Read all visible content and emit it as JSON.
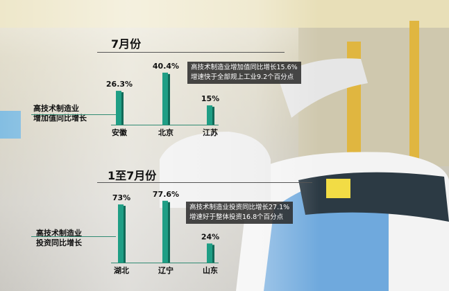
{
  "chart_data": [
    {
      "type": "bar",
      "title": "7月份",
      "ylabel": "高技术制造业增加值同比增长",
      "categories": [
        "安徽",
        "北京",
        "江苏"
      ],
      "values": [
        26.3,
        40.4,
        15
      ],
      "value_labels": [
        "26.3%",
        "40.4%",
        "15%"
      ],
      "annotation": [
        "高技术制造业增加值同比增长15.6%",
        "增速快于全部规上工业9.2个百分点"
      ],
      "bar_color": "#1f9e85"
    },
    {
      "type": "bar",
      "title": "1至7月份",
      "ylabel": "高技术制造业投资同比增长",
      "categories": [
        "湖北",
        "辽宁",
        "山东"
      ],
      "values": [
        73,
        77.6,
        24
      ],
      "value_labels": [
        "73%",
        "77.6%",
        "24%"
      ],
      "annotation": [
        "高技术制造业投资同比增长27.1%",
        "增速好于整体投资16.8个百分点"
      ],
      "bar_color": "#1f9e85"
    }
  ],
  "ylabel_lines": [
    [
      "高技术制造业",
      "增加值同比增长"
    ],
    [
      "高技术制造业",
      "投资同比增长"
    ]
  ]
}
